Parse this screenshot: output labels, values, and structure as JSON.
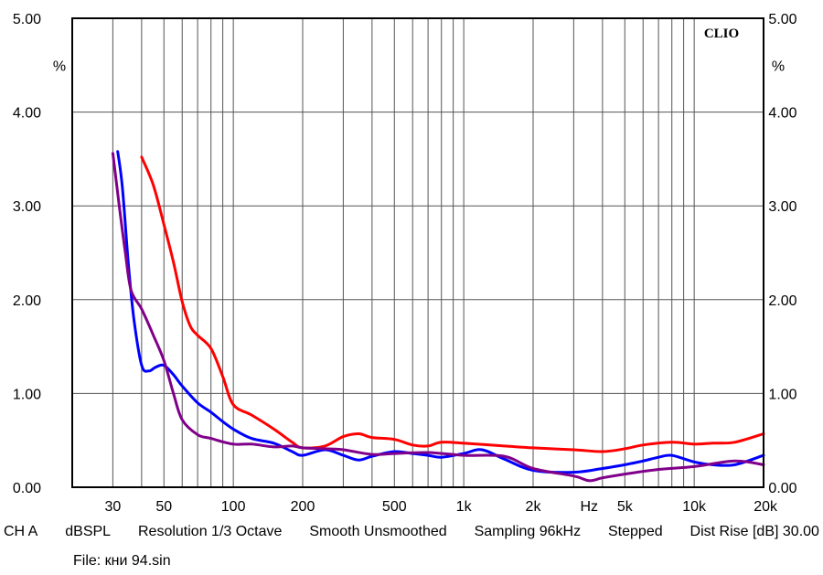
{
  "chart_data": {
    "type": "line",
    "brand": "CLIO",
    "xscale": "log",
    "xlim": [
      20,
      20000
    ],
    "ylim": [
      0,
      5
    ],
    "ylabel": "%",
    "xlabel": "Hz",
    "y_ticks_left": [
      "0.00",
      "1.00",
      "2.00",
      "3.00",
      "4.00",
      "5.00"
    ],
    "y_ticks_right": [
      "0.00",
      "1.00",
      "2.00",
      "3.00",
      "4.00",
      "5.00"
    ],
    "x_ticks": [
      {
        "value": 30,
        "label": "30"
      },
      {
        "value": 50,
        "label": "50"
      },
      {
        "value": 100,
        "label": "100"
      },
      {
        "value": 200,
        "label": "200"
      },
      {
        "value": 500,
        "label": "500"
      },
      {
        "value": 1000,
        "label": "1k"
      },
      {
        "value": 2000,
        "label": "2k"
      },
      {
        "value": 5000,
        "label": "5k"
      },
      {
        "value": 10000,
        "label": "10k"
      },
      {
        "value": 20000,
        "label": "20k"
      }
    ],
    "grid": true,
    "series": [
      {
        "name": "red",
        "color": "#ff0000",
        "x": [
          40,
          45,
          50,
          55,
          60,
          65,
          70,
          80,
          90,
          100,
          120,
          150,
          180,
          200,
          250,
          300,
          350,
          400,
          500,
          600,
          700,
          800,
          1000,
          1500,
          2000,
          3000,
          4000,
          5000,
          6000,
          8000,
          10000,
          12000,
          15000,
          20000
        ],
        "values": [
          3.52,
          3.22,
          2.8,
          2.4,
          1.98,
          1.72,
          1.62,
          1.48,
          1.18,
          0.88,
          0.77,
          0.62,
          0.48,
          0.42,
          0.44,
          0.54,
          0.57,
          0.53,
          0.51,
          0.45,
          0.44,
          0.48,
          0.47,
          0.44,
          0.42,
          0.4,
          0.38,
          0.41,
          0.45,
          0.48,
          0.46,
          0.47,
          0.48,
          0.57
        ]
      },
      {
        "name": "blue",
        "color": "#0000ff",
        "x": [
          31.5,
          33,
          35,
          37,
          40,
          43,
          46,
          50,
          55,
          60,
          70,
          80,
          90,
          100,
          120,
          150,
          180,
          200,
          250,
          300,
          350,
          400,
          500,
          600,
          700,
          800,
          1000,
          1200,
          1500,
          2000,
          3000,
          4000,
          5000,
          6000,
          7000,
          8000,
          10000,
          12000,
          15000,
          20000
        ],
        "values": [
          3.58,
          3.2,
          2.4,
          1.8,
          1.3,
          1.24,
          1.28,
          1.3,
          1.2,
          1.08,
          0.9,
          0.8,
          0.7,
          0.62,
          0.52,
          0.47,
          0.38,
          0.34,
          0.4,
          0.34,
          0.29,
          0.33,
          0.38,
          0.36,
          0.34,
          0.32,
          0.36,
          0.4,
          0.3,
          0.18,
          0.16,
          0.2,
          0.24,
          0.28,
          0.32,
          0.34,
          0.27,
          0.24,
          0.24,
          0.34
        ]
      },
      {
        "name": "purple",
        "color": "#80008a",
        "x": [
          30,
          32,
          34,
          36,
          40,
          45,
          50,
          55,
          60,
          70,
          80,
          100,
          120,
          150,
          180,
          200,
          250,
          300,
          400,
          500,
          700,
          1000,
          1500,
          2000,
          3000,
          3500,
          4000,
          5000,
          7000,
          10000,
          15000,
          20000
        ],
        "values": [
          3.56,
          3.0,
          2.5,
          2.1,
          1.9,
          1.62,
          1.35,
          1.0,
          0.72,
          0.56,
          0.52,
          0.46,
          0.46,
          0.43,
          0.44,
          0.42,
          0.41,
          0.4,
          0.35,
          0.36,
          0.37,
          0.34,
          0.33,
          0.2,
          0.12,
          0.07,
          0.1,
          0.14,
          0.19,
          0.22,
          0.28,
          0.24
        ]
      }
    ]
  },
  "settings": {
    "channel": "CH A",
    "unit": "dBSPL",
    "resolution": "Resolution 1/3 Octave",
    "smooth": "Smooth Unsmoothed",
    "sampling": "Sampling 96kHz",
    "mode": "Stepped",
    "dist_rise": "Dist Rise [dB] 30.00"
  },
  "file": "File: кни 94.sin"
}
